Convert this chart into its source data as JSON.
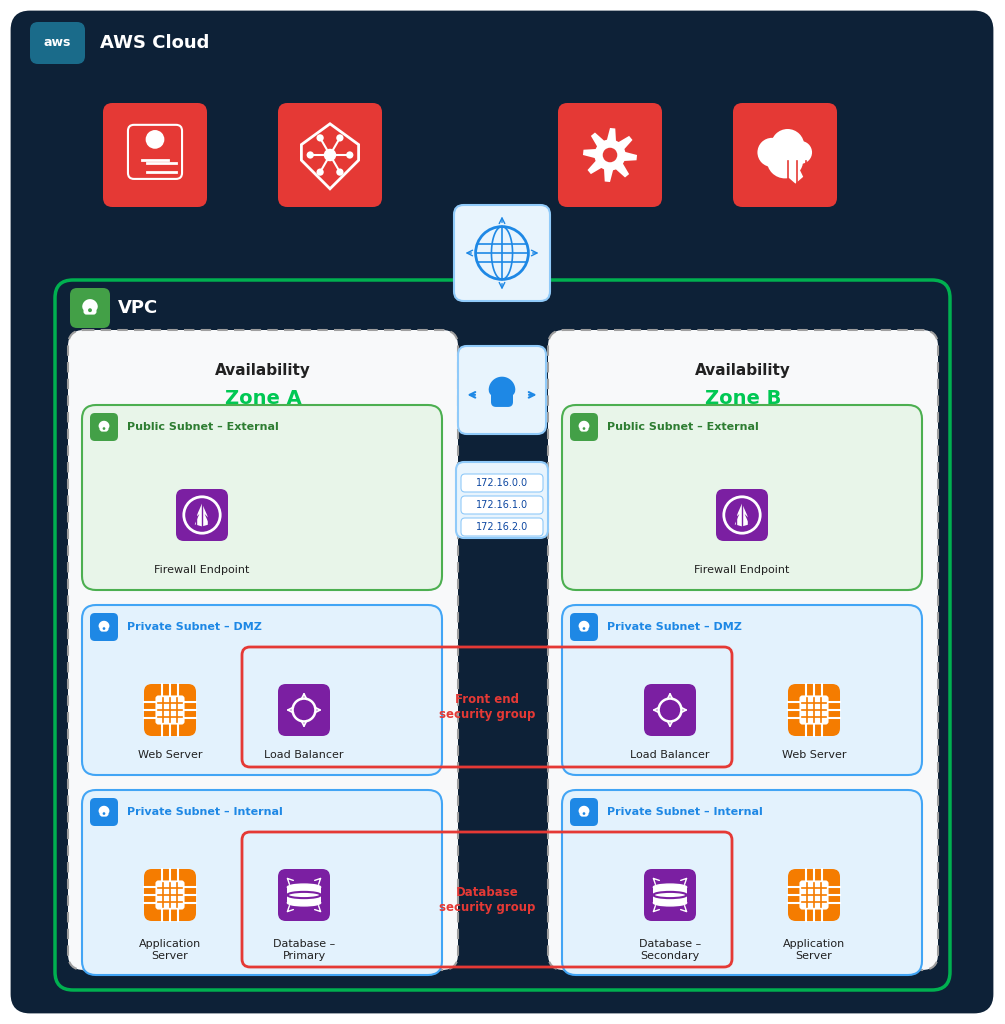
{
  "bg_color": "#ffffff",
  "outer_border_color": "#0d2137",
  "outer_border_bg": "#0d2137",
  "vpc_border_color": "#00b050",
  "vpc_bg": "#0d2137",
  "zone_bg": "#f5f5f5",
  "zone_border": "#cccccc",
  "pub_subnet_bg": "#e8f5e9",
  "pub_subnet_border": "#4caf50",
  "dmz_subnet_bg": "#e3f2fd",
  "dmz_subnet_border": "#42a5f5",
  "int_subnet_bg": "#e3f2fd",
  "int_subnet_border": "#42a5f5",
  "igw_box_bg": "#e8f4fd",
  "igw_box_border": "#90caf9",
  "vpn_box_bg": "#e8f4fd",
  "vpn_box_border": "#90caf9",
  "ip_box_bg": "#e8f4fd",
  "ip_box_border": "#90caf9",
  "red_icon_bg": "#e53935",
  "orange_icon_bg": "#f57c00",
  "purple_icon_bg": "#7b1fa2",
  "green_badge_bg": "#43a047",
  "blue_badge_bg": "#1e88e5",
  "aws_badge_bg": "#1a6b8a",
  "sg_border_color": "#e53935",
  "green_text": "#00c853",
  "blue_text": "#1e88e5",
  "red_text": "#e53935",
  "green_label_text": "#2e7d32",
  "dark_text": "#212121",
  "white": "#ffffff",
  "title_text": "AWS Cloud",
  "vpc_label": "VPC",
  "zone_a_title": "Availability",
  "zone_a_subtitle": "Zone A",
  "zone_b_title": "Availability",
  "zone_b_subtitle": "Zone B",
  "pub_subnet_label": "Public Subnet – External",
  "dmz_label": "Private Subnet – DMZ",
  "int_label": "Private Subnet – Internal",
  "firewall_label": "Firewall Endpoint",
  "web_server_label": "Web Server",
  "load_balancer_label": "Load Balancer",
  "app_server_label": "Application\nServer",
  "db_primary_label": "Database –\nPrimary",
  "db_secondary_label": "Database –\nSecondary",
  "front_sg_label": "Front end\nsecurity group",
  "db_sg_label": "Database\nsecurity group",
  "ip_labels": [
    "172.16.0.0",
    "172.16.1.0",
    "172.16.2.0"
  ]
}
